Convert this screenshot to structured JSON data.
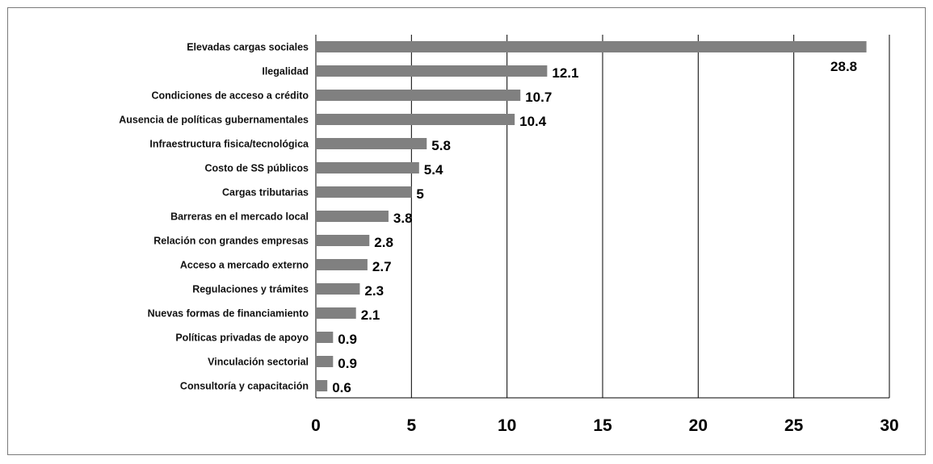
{
  "chart_data": {
    "type": "bar",
    "orientation": "horizontal",
    "categories": [
      "Elevadas cargas sociales",
      "Ilegalidad",
      "Condiciones de acceso a crédito",
      "Ausencia de políticas gubernamentales",
      "Infraestructura fisica/tecnológica",
      "Costo de SS públicos",
      "Cargas tributarias",
      "Barreras en el mercado local",
      "Relación con grandes empresas",
      "Acceso a mercado externo",
      "Regulaciones y trámites",
      "Nuevas formas de financiamiento",
      "Políticas privadas de apoyo",
      "Vinculación sectorial",
      "Consultoría y capacitación"
    ],
    "values": [
      28.8,
      12.1,
      10.7,
      10.4,
      5.8,
      5.4,
      5,
      3.8,
      2.8,
      2.7,
      2.3,
      2.1,
      0.9,
      0.9,
      0.6
    ],
    "value_labels": [
      "28.8",
      "12.1",
      "10.7",
      "10.4",
      "5.8",
      "5.4",
      "5",
      "3.8",
      "2.8",
      "2.7",
      "2.3",
      "2.1",
      "0.9",
      "0.9",
      "0.6"
    ],
    "xlim": [
      0,
      30
    ],
    "xticks": [
      0,
      5,
      10,
      15,
      20,
      25,
      30
    ],
    "xtick_labels": [
      "0",
      "5",
      "10",
      "15",
      "20",
      "25",
      "30"
    ],
    "grid": "vertical",
    "bar_color": "#808080",
    "grid_color": "#000000"
  }
}
